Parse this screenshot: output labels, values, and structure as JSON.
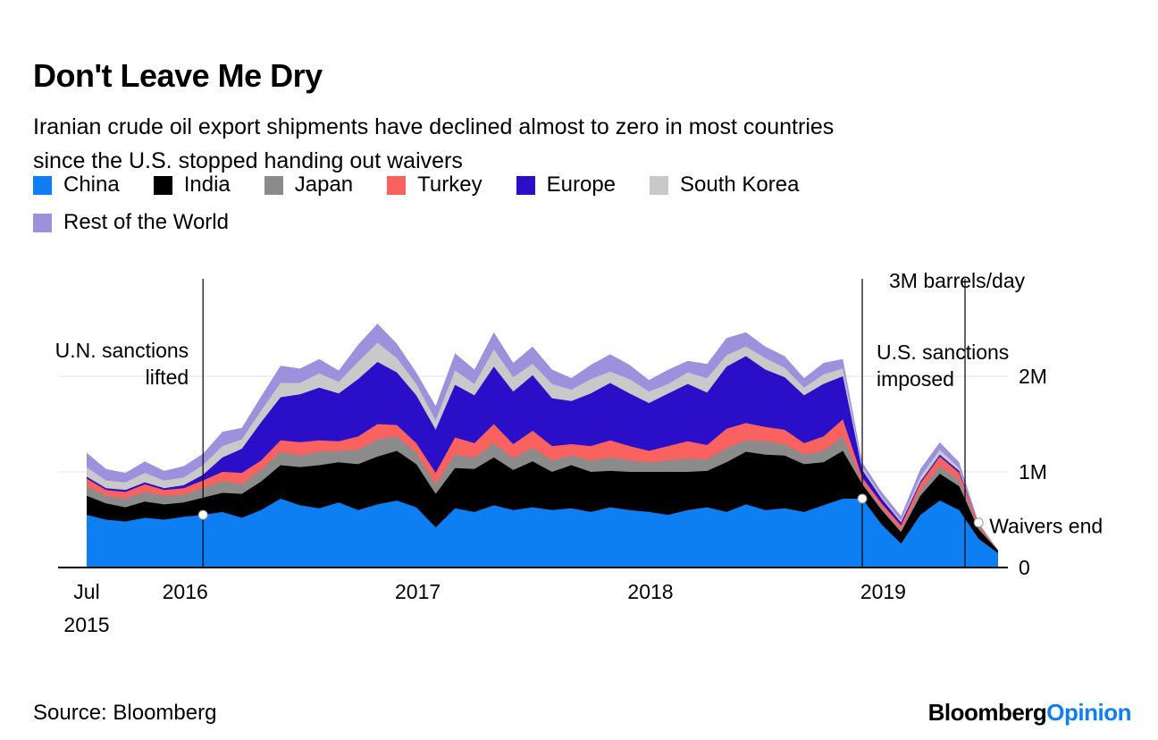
{
  "header": {
    "title": "Don't Leave Me Dry"
  },
  "footer": {
    "source": "Source: Bloomberg",
    "brand": "Bloomberg",
    "brand_suffix": "Opinion",
    "brand_suffix_color": "#0e7ff1"
  },
  "chart_data": {
    "type": "area",
    "stacked": true,
    "title": "Don't Leave Me Dry",
    "subtitle_lines": [
      "Iranian crude oil export shipments have declined almost to zero in most countries",
      "since the U.S. stopped handing out waivers"
    ],
    "unit": "million barrels/day",
    "legend_position": "top-left",
    "grid": "horizontal",
    "x_axis": {
      "start": "2015-07",
      "end": "2019-06",
      "granularity": "month",
      "ticks": [
        {
          "month": 0,
          "label": "Jul",
          "sublabel": "2015"
        },
        {
          "month": 6,
          "label": "2016"
        },
        {
          "month": 18,
          "label": "2017"
        },
        {
          "month": 30,
          "label": "2018"
        },
        {
          "month": 42,
          "label": "2019"
        }
      ]
    },
    "y_axis": {
      "ylim": [
        0,
        3
      ],
      "ticks": [
        {
          "value": 0,
          "label": "0"
        },
        {
          "value": 1,
          "label": "1M"
        },
        {
          "value": 2,
          "label": "2M"
        },
        {
          "value": 3,
          "label": "3M barrels/day"
        }
      ],
      "gridlines": [
        1,
        2
      ]
    },
    "x": [
      "2015-07",
      "2015-08",
      "2015-09",
      "2015-10",
      "2015-11",
      "2015-12",
      "2016-01",
      "2016-02",
      "2016-03",
      "2016-04",
      "2016-05",
      "2016-06",
      "2016-07",
      "2016-08",
      "2016-09",
      "2016-10",
      "2016-11",
      "2016-12",
      "2017-01",
      "2017-02",
      "2017-03",
      "2017-04",
      "2017-05",
      "2017-06",
      "2017-07",
      "2017-08",
      "2017-09",
      "2017-10",
      "2017-11",
      "2017-12",
      "2018-01",
      "2018-02",
      "2018-03",
      "2018-04",
      "2018-05",
      "2018-06",
      "2018-07",
      "2018-08",
      "2018-09",
      "2018-10",
      "2018-11",
      "2018-12",
      "2019-01",
      "2019-02",
      "2019-03",
      "2019-04",
      "2019-05",
      "2019-06"
    ],
    "series": [
      {
        "name": "China",
        "color": "#0d7ff2",
        "values": [
          0.55,
          0.5,
          0.48,
          0.52,
          0.5,
          0.53,
          0.55,
          0.58,
          0.52,
          0.6,
          0.72,
          0.65,
          0.62,
          0.68,
          0.6,
          0.66,
          0.7,
          0.63,
          0.42,
          0.62,
          0.58,
          0.65,
          0.6,
          0.63,
          0.6,
          0.62,
          0.58,
          0.63,
          0.6,
          0.58,
          0.55,
          0.6,
          0.63,
          0.58,
          0.66,
          0.6,
          0.62,
          0.58,
          0.65,
          0.72,
          0.72,
          0.45,
          0.25,
          0.55,
          0.7,
          0.6,
          0.3,
          0.15
        ]
      },
      {
        "name": "India",
        "color": "#000000",
        "values": [
          0.2,
          0.17,
          0.15,
          0.17,
          0.16,
          0.15,
          0.18,
          0.2,
          0.25,
          0.3,
          0.35,
          0.4,
          0.45,
          0.42,
          0.48,
          0.5,
          0.52,
          0.45,
          0.35,
          0.42,
          0.45,
          0.5,
          0.42,
          0.48,
          0.4,
          0.45,
          0.42,
          0.38,
          0.4,
          0.42,
          0.45,
          0.4,
          0.38,
          0.52,
          0.55,
          0.58,
          0.55,
          0.5,
          0.45,
          0.5,
          0.15,
          0.15,
          0.12,
          0.2,
          0.28,
          0.25,
          0.1,
          0.03
        ]
      },
      {
        "name": "Japan",
        "color": "#8b8b8b",
        "values": [
          0.1,
          0.08,
          0.09,
          0.1,
          0.09,
          0.08,
          0.1,
          0.12,
          0.1,
          0.12,
          0.14,
          0.12,
          0.14,
          0.12,
          0.15,
          0.18,
          0.15,
          0.12,
          0.1,
          0.14,
          0.12,
          0.15,
          0.12,
          0.14,
          0.12,
          0.1,
          0.12,
          0.14,
          0.12,
          0.1,
          0.12,
          0.14,
          0.12,
          0.15,
          0.12,
          0.14,
          0.12,
          0.1,
          0.12,
          0.15,
          0.02,
          0.02,
          0.02,
          0.05,
          0.08,
          0.06,
          0.02,
          0.0
        ]
      },
      {
        "name": "Turkey",
        "color": "#fa625f",
        "values": [
          0.08,
          0.06,
          0.07,
          0.08,
          0.06,
          0.07,
          0.08,
          0.1,
          0.12,
          0.1,
          0.12,
          0.14,
          0.12,
          0.1,
          0.14,
          0.16,
          0.12,
          0.1,
          0.12,
          0.18,
          0.15,
          0.2,
          0.15,
          0.18,
          0.15,
          0.12,
          0.15,
          0.18,
          0.15,
          0.12,
          0.15,
          0.18,
          0.15,
          0.2,
          0.18,
          0.15,
          0.15,
          0.12,
          0.15,
          0.18,
          0.05,
          0.05,
          0.05,
          0.08,
          0.1,
          0.08,
          0.03,
          0.0
        ]
      },
      {
        "name": "Europe",
        "color": "#2b0ec7",
        "values": [
          0.02,
          0.02,
          0.02,
          0.02,
          0.02,
          0.03,
          0.06,
          0.15,
          0.25,
          0.4,
          0.45,
          0.5,
          0.55,
          0.5,
          0.6,
          0.65,
          0.55,
          0.5,
          0.45,
          0.55,
          0.5,
          0.6,
          0.55,
          0.58,
          0.5,
          0.45,
          0.55,
          0.6,
          0.55,
          0.5,
          0.55,
          0.6,
          0.55,
          0.65,
          0.7,
          0.6,
          0.55,
          0.5,
          0.55,
          0.45,
          0.08,
          0.05,
          0.03,
          0.02,
          0.02,
          0.02,
          0.0,
          0.0
        ]
      },
      {
        "name": "South Korea",
        "color": "#c9c9c9",
        "values": [
          0.1,
          0.08,
          0.08,
          0.1,
          0.08,
          0.08,
          0.1,
          0.12,
          0.1,
          0.12,
          0.15,
          0.12,
          0.15,
          0.12,
          0.18,
          0.2,
          0.15,
          0.12,
          0.1,
          0.15,
          0.12,
          0.18,
          0.15,
          0.12,
          0.15,
          0.12,
          0.15,
          0.12,
          0.15,
          0.12,
          0.1,
          0.12,
          0.15,
          0.12,
          0.1,
          0.12,
          0.1,
          0.08,
          0.1,
          0.08,
          0.03,
          0.02,
          0.02,
          0.05,
          0.05,
          0.03,
          0.0,
          0.0
        ]
      },
      {
        "name": "Rest of the World",
        "color": "#9d90dd",
        "values": [
          0.15,
          0.12,
          0.1,
          0.12,
          0.1,
          0.12,
          0.12,
          0.15,
          0.12,
          0.15,
          0.18,
          0.15,
          0.15,
          0.12,
          0.18,
          0.2,
          0.15,
          0.12,
          0.15,
          0.18,
          0.15,
          0.18,
          0.15,
          0.18,
          0.15,
          0.12,
          0.15,
          0.18,
          0.15,
          0.12,
          0.15,
          0.12,
          0.15,
          0.18,
          0.15,
          0.12,
          0.12,
          0.1,
          0.12,
          0.1,
          0.05,
          0.05,
          0.05,
          0.08,
          0.08,
          0.06,
          0.02,
          0.0
        ]
      }
    ],
    "annotations": [
      {
        "id": "un-sanctions",
        "lines": [
          "U.N. sanctions",
          "lifted"
        ],
        "month": 6,
        "placement": "top",
        "marker": {
          "month": 6,
          "value": 0.55
        }
      },
      {
        "id": "us-sanctions",
        "lines": [
          "U.S. sanctions",
          "imposed"
        ],
        "month": 40,
        "placement": "top",
        "marker": {
          "month": 40,
          "value": 0.72
        }
      },
      {
        "id": "waivers-end",
        "lines": [
          "Waivers end"
        ],
        "month": 45.3,
        "placement": "marker",
        "marker": {
          "month": 46,
          "value": 0.47
        }
      }
    ]
  }
}
